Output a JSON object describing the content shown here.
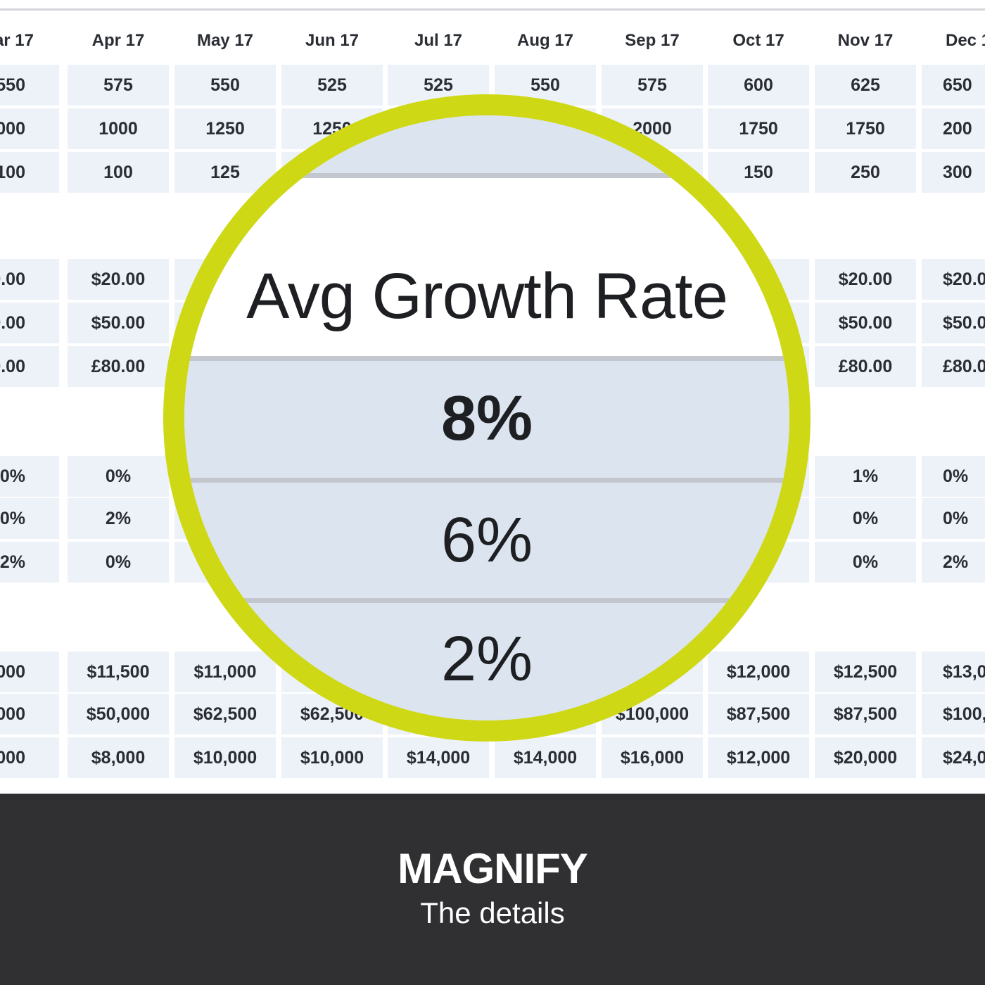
{
  "table": {
    "headers": [
      "ar 17",
      "Apr 17",
      "May 17",
      "Jun 17",
      "Jul 17",
      "Aug 17",
      "Sep 17",
      "Oct 17",
      "Nov 17",
      "Dec 1"
    ],
    "groups": [
      [
        [
          "550",
          "575",
          "550",
          "525",
          "525",
          "550",
          "575",
          "600",
          "625",
          "650"
        ],
        [
          "000",
          "1000",
          "1250",
          "1250",
          "",
          "",
          "2000",
          "1750",
          "1750",
          "200"
        ],
        [
          "100",
          "100",
          "125",
          "",
          "",
          "",
          "",
          "150",
          "250",
          "300"
        ]
      ],
      [
        [
          "0.00",
          "$20.00",
          "",
          "",
          "",
          "",
          "",
          "",
          "$20.00",
          "$20.0"
        ],
        [
          "0.00",
          "$50.00",
          "",
          "",
          "",
          "",
          "",
          "",
          "$50.00",
          "$50.0"
        ],
        [
          "0.00",
          "£80.00",
          "",
          "",
          "",
          "",
          "",
          "",
          "£80.00",
          "£80.0"
        ]
      ],
      [
        [
          "0%",
          "0%",
          "",
          "",
          "",
          "",
          "",
          "",
          "1%",
          "0%"
        ],
        [
          "0%",
          "2%",
          "",
          "",
          "",
          "",
          "",
          "",
          "0%",
          "0%"
        ],
        [
          "2%",
          "0%",
          "",
          "",
          "",
          "",
          "",
          "",
          "0%",
          "2%"
        ]
      ],
      [
        [
          ",000",
          "$11,500",
          "$11,000",
          "",
          "",
          "",
          "",
          "$12,000",
          "$12,500",
          "$13,0"
        ],
        [
          ",000",
          "$50,000",
          "$62,500",
          "$62,500",
          "",
          "",
          "$100,000",
          "$87,500",
          "$87,500",
          "$100,0"
        ],
        [
          ",000",
          "$8,000",
          "$10,000",
          "$10,000",
          "$14,000",
          "$14,000",
          "$16,000",
          "$12,000",
          "$20,000",
          "$24,0"
        ]
      ]
    ]
  },
  "magnifier": {
    "title": "Avg Growth Rate",
    "values": [
      "8%",
      "6%",
      "2%"
    ]
  },
  "footer": {
    "title": "MAGNIFY",
    "subtitle": "The details"
  },
  "colors": {
    "lens_ring": "#cfd815",
    "footer_bg": "#303032",
    "cell_bg": "#edf2f9"
  }
}
